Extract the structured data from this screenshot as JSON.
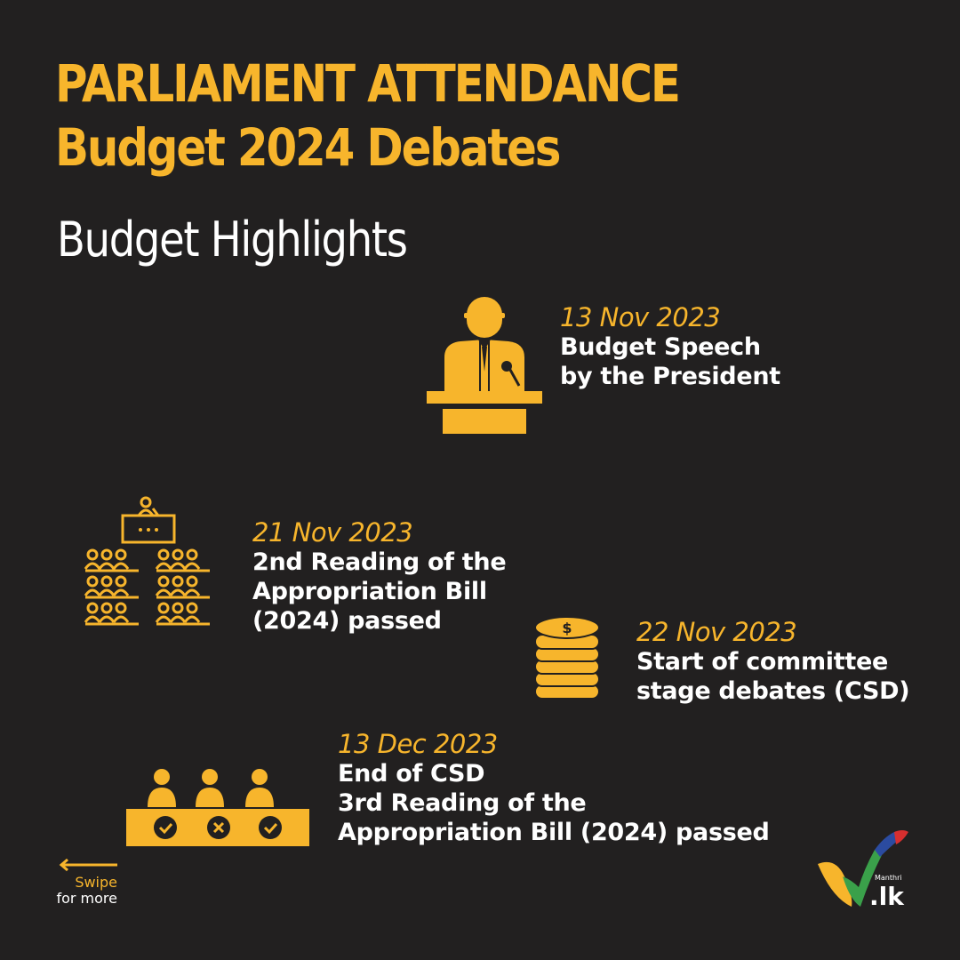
{
  "header": {
    "title_line1": "PARLIAMENT ATTENDANCE",
    "title_line2": "Budget 2024 Debates",
    "subtitle": "Budget Highlights"
  },
  "events": [
    {
      "date": "13 Nov 2023",
      "lines": [
        "Budget Speech",
        "by the President"
      ],
      "icon": "speaker-podium-icon"
    },
    {
      "date": "21 Nov 2023",
      "lines": [
        "2nd Reading of the",
        "Appropriation Bill",
        "(2024) passed"
      ],
      "icon": "assembly-icon"
    },
    {
      "date": "22 Nov 2023",
      "lines": [
        "Start of committee",
        "stage debates (CSD)"
      ],
      "icon": "coins-stack-icon"
    },
    {
      "date": "13 Dec 2023",
      "lines": [
        "End of CSD",
        "3rd Reading of the",
        "Appropriation Bill (2024) passed"
      ],
      "icon": "voting-panel-icon"
    }
  ],
  "footer": {
    "swipe_line1": "Swipe",
    "swipe_line2": "for more",
    "logo_small": "Manthri",
    "logo_text": ".lk"
  },
  "colors": {
    "accent": "#f7b52c",
    "background": "#222020",
    "text": "#ffffff"
  }
}
